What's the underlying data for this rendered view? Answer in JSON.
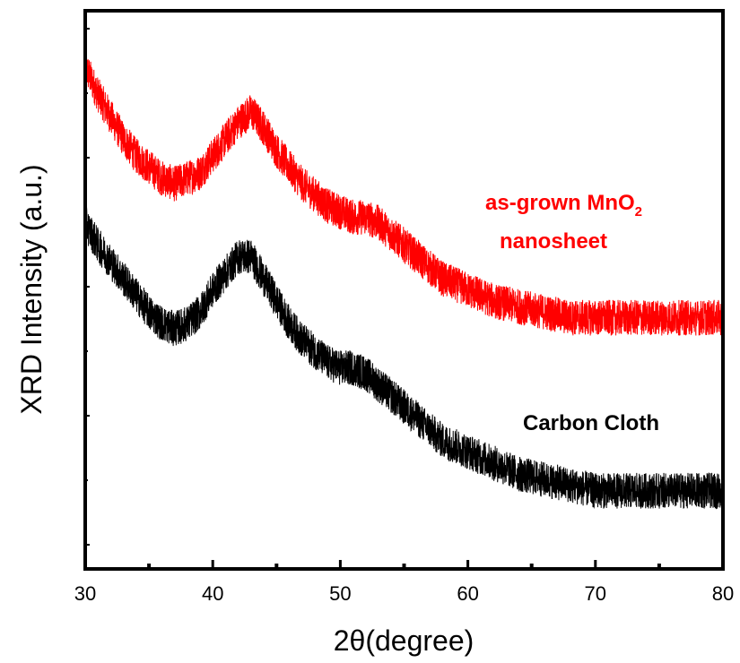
{
  "chart_data": {
    "type": "line",
    "title": "",
    "xlabel": "2θ(degree)",
    "ylabel": "XRD Intensity (a.u.)",
    "xlim": [
      30,
      80
    ],
    "ylim": [
      0,
      100
    ],
    "x_ticks": [
      30,
      40,
      50,
      60,
      70,
      80
    ],
    "x_tick_labels": [
      "30",
      "40",
      "50",
      "60",
      "70",
      "80"
    ],
    "y_tick_labels_shown": false,
    "grid": false,
    "series": [
      {
        "name": "as-grown MnO2 nanosheet",
        "color": "#ff0000",
        "x": [
          30,
          31,
          32,
          33,
          34,
          35,
          36,
          37,
          38,
          39,
          40,
          41,
          42,
          43,
          44,
          45,
          46,
          47,
          48,
          49,
          50,
          51,
          52,
          53,
          54,
          55,
          56,
          57,
          58,
          59,
          60,
          62,
          64,
          66,
          68,
          70,
          72,
          74,
          76,
          78,
          80
        ],
        "values": [
          90,
          85,
          81,
          77,
          74,
          72,
          70,
          69,
          70,
          71,
          74,
          77,
          80,
          82,
          79,
          75,
          72,
          69,
          67,
          65,
          64,
          63,
          63,
          62,
          60,
          58,
          56,
          54,
          52,
          51,
          50,
          48,
          47,
          46,
          45,
          45,
          45,
          45,
          45,
          45,
          45
        ]
      },
      {
        "name": "Carbon Cloth",
        "color": "#000000",
        "x": [
          30,
          31,
          32,
          33,
          34,
          35,
          36,
          37,
          38,
          39,
          40,
          41,
          42,
          43,
          44,
          45,
          46,
          47,
          48,
          49,
          50,
          51,
          52,
          53,
          54,
          55,
          56,
          57,
          58,
          59,
          60,
          62,
          64,
          66,
          68,
          70,
          72,
          74,
          76,
          78,
          80
        ],
        "values": [
          62,
          58,
          55,
          52,
          49,
          46,
          44,
          43,
          44,
          46,
          50,
          53,
          56,
          56,
          52,
          48,
          44,
          41,
          39,
          37,
          36,
          36,
          35,
          33,
          31,
          29,
          27,
          25,
          23,
          22,
          21,
          19,
          17,
          16,
          15,
          14,
          14,
          14,
          14,
          14,
          14
        ]
      }
    ],
    "annotations": [
      {
        "text": "as-grown MnO",
        "subscript": "2",
        "line2": "nanosheet",
        "color": "#ff0000",
        "x": 62,
        "y": 62
      },
      {
        "text": "Carbon Cloth",
        "color": "#000000",
        "x": 69,
        "y": 25
      }
    ]
  }
}
